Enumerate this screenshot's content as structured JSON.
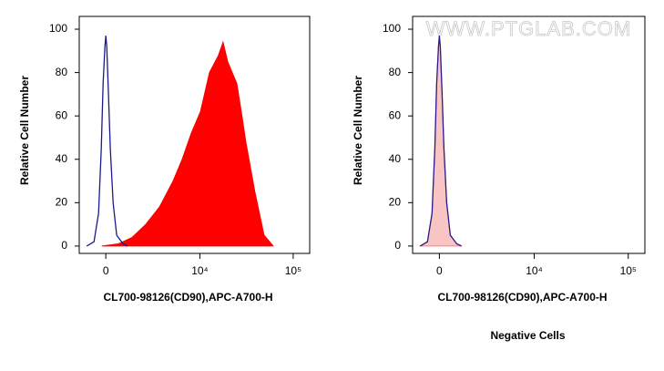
{
  "chart_data": [
    {
      "type": "area",
      "ylabel": "Relative Cell Number",
      "xlabel": "CL700-98126(CD90),APC-A700-H",
      "xscale": "asinh",
      "xlim": [
        -1400,
        150000
      ],
      "ylim": [
        -3.4,
        105.9
      ],
      "xticks": [
        0,
        {
          "value": 10000,
          "label": "10⁴"
        },
        {
          "value": 100000,
          "label": "10⁵"
        }
      ],
      "yticks": [
        0,
        20,
        40,
        60,
        80,
        100
      ],
      "series": [
        {
          "color": "#ff0000",
          "fill": "#ff0000",
          "x": [
            -179,
            636,
            1390,
            2300,
            3470,
            5040,
            6380,
            8050,
            10140,
            12720,
            15900,
            17800,
            19960,
            22300,
            25000,
            27900,
            31200,
            39000,
            48800,
            61200
          ],
          "values": [
            0,
            1,
            4,
            10,
            18,
            30,
            40,
            52,
            62,
            80,
            88,
            94,
            85,
            80,
            75,
            62,
            48,
            25,
            5,
            0
          ]
        },
        {
          "color": "#1a1a8c",
          "fill": null,
          "x": [
            -974,
            -588,
            -360,
            -224,
            -134,
            -45,
            0,
            45,
            134,
            224,
            360,
            542,
            874,
            1126
          ],
          "values": [
            0,
            2,
            15,
            45,
            75,
            92,
            97,
            92,
            70,
            45,
            20,
            5,
            1,
            0
          ]
        }
      ]
    },
    {
      "type": "area",
      "ylabel": "Relative Cell Number",
      "xlabel": "CL700-98126(CD90),APC-A700-H",
      "caption": "Negative Cells",
      "watermark": "WWW.PTGLAB.COM",
      "xscale": "asinh",
      "xlim": [
        -1400,
        150000
      ],
      "ylim": [
        -3.4,
        105.9
      ],
      "xticks": [
        0,
        {
          "value": 10000,
          "label": "10⁴"
        },
        {
          "value": 100000,
          "label": "10⁵"
        }
      ],
      "yticks": [
        0,
        20,
        40,
        60,
        80,
        100
      ],
      "series": [
        {
          "color": "#ff8080",
          "fill": "#f9c4c4",
          "x": [
            -974,
            -588,
            -360,
            -224,
            -134,
            -45,
            0,
            45,
            134,
            224,
            360,
            542,
            874,
            1126
          ],
          "values": [
            0,
            2,
            15,
            45,
            75,
            92,
            97,
            92,
            70,
            45,
            20,
            5,
            1,
            0
          ]
        },
        {
          "color": "#2a1a8c",
          "fill": null,
          "x": [
            -974,
            -588,
            -360,
            -224,
            -134,
            -45,
            0,
            45,
            134,
            224,
            360,
            542,
            874,
            1126
          ],
          "values": [
            0,
            2,
            15,
            45,
            75,
            92,
            97,
            92,
            70,
            45,
            20,
            5,
            1,
            0
          ]
        }
      ]
    }
  ]
}
